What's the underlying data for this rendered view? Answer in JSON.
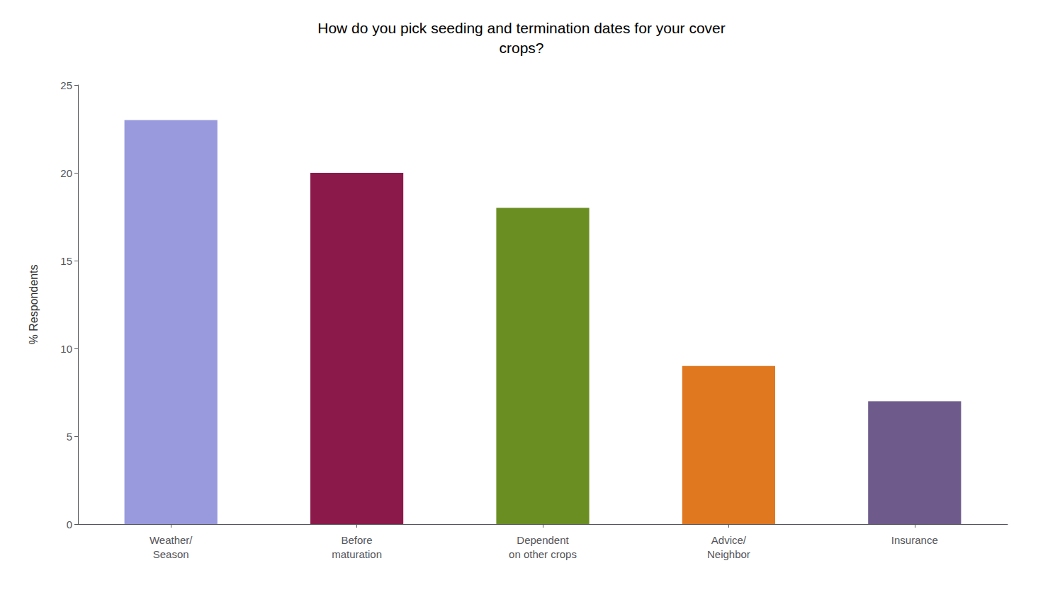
{
  "chart_data": {
    "type": "bar",
    "title": "How do you pick seeding and termination dates for your cover\ncrops?",
    "ylabel": "% Respondents",
    "categories": [
      "Weather/\nSeason",
      "Before\nmaturation",
      "Dependent\non other crops",
      "Advice/\nNeighbor",
      "Insurance"
    ],
    "values": [
      23,
      20,
      18,
      9,
      7
    ],
    "colors": [
      "#9999dd",
      "#8b1a4a",
      "#6b8e23",
      "#e07820",
      "#6e5b8b"
    ],
    "ylim": [
      0,
      25
    ],
    "yticks": [
      0,
      5,
      10,
      15,
      20,
      25
    ],
    "grid": false
  }
}
